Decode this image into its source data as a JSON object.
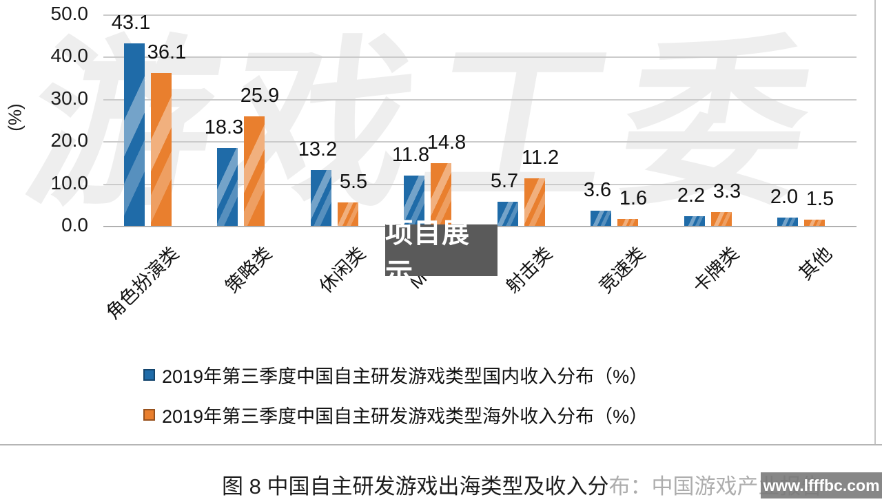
{
  "chart_data": {
    "type": "bar",
    "title": "",
    "categories": [
      "角色扮演类",
      "策略类",
      "休闲类",
      "MOBA",
      "射击类",
      "竞速类",
      "卡牌类",
      "其他"
    ],
    "series": [
      {
        "name": "2019年第三季度中国自主研发游戏类型国内收入分布（%）",
        "color": "#1f6ba8",
        "values": [
          43.1,
          18.3,
          13.2,
          11.8,
          5.7,
          3.6,
          2.2,
          2.0
        ]
      },
      {
        "name": "2019年第三季度中国自主研发游戏类型海外收入分布（%）",
        "color": "#e97f2e",
        "values": [
          36.1,
          25.9,
          5.5,
          14.8,
          11.2,
          1.6,
          3.3,
          1.5
        ]
      }
    ],
    "ylabel": "(%)",
    "ylim": [
      0,
      50
    ],
    "yticks": [
      50.0,
      40.0,
      30.0,
      20.0,
      10.0,
      0.0
    ],
    "ytick_labels": [
      "50.0",
      "40.0",
      "30.0",
      "20.0",
      "10.0",
      "0.0"
    ],
    "grid": true,
    "legend_position": "bottom-left",
    "value_labels_decimals": 1
  },
  "overlays": {
    "background_watermark": "游戏工委",
    "center_badge": "项目展示",
    "site_watermark": "www.lfffbc.com"
  },
  "caption": {
    "visible_part": "图 8 中国自主研发游戏出海类型及收入分",
    "faded_part": "布：中国游戏产业报告"
  },
  "colors": {
    "domestic_series": "#1f6ba8",
    "overseas_series": "#e97f2e",
    "gridline": "#cbcbcb",
    "badge_background": "#5a5a5a",
    "watermark_text": "#ffffff"
  }
}
